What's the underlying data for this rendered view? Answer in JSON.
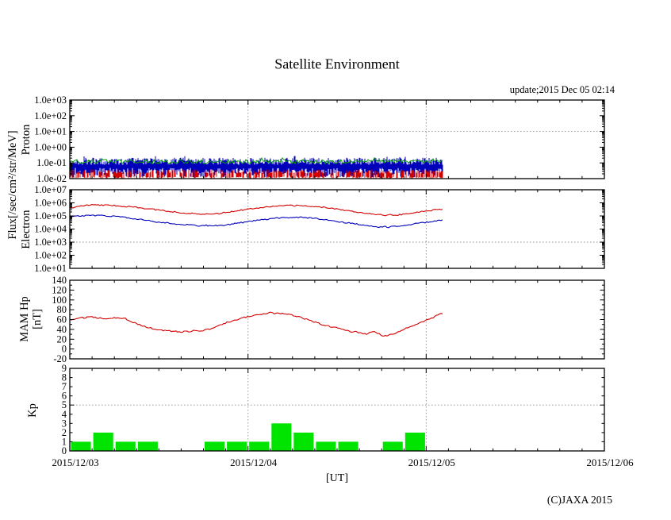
{
  "title": "Satellite Environment",
  "update_text": "update;2015 Dec 05 02:14",
  "copyright": "(C)JAXA 2015",
  "flux_axis_label": "Flux[/sec/cm²/str/MeV]",
  "x_axis": {
    "label": "[UT]",
    "tick_labels": [
      "2015/12/03",
      "2015/12/04",
      "2015/12/05",
      "2015/12/06"
    ],
    "range_hours": 72,
    "minor_tick_hours": 3,
    "data_end_hours": 50.23
  },
  "colors": {
    "red": "#d40000",
    "blue": "#0000bb",
    "green": "#00a000",
    "kp_green": "#00e400",
    "grid": "#8f8f8f",
    "border": "#000000"
  },
  "chart_data": [
    {
      "type": "line",
      "panel": "proton",
      "title": "Proton",
      "yscale": "log",
      "ylim": [
        0.01,
        1000
      ],
      "ytick_labels": [
        "1.0e+03",
        "1.0e+02",
        "1.0e+01",
        "1.0e+00",
        "1.0e-01",
        "1.0e-02"
      ],
      "grid_value": 10,
      "noise_seed": 20151205,
      "noise_bands": [
        {
          "name": "proton-green-channel",
          "color_key": "green",
          "min": 0.09,
          "max": 0.2
        },
        {
          "name": "proton-blue-channel",
          "color_key": "blue",
          "min": 0.012,
          "max": 0.21
        },
        {
          "name": "proton-red-channel",
          "color_key": "red",
          "min": 0.01,
          "max": 0.04
        }
      ]
    },
    {
      "type": "line",
      "panel": "electron",
      "title": "Electron",
      "yscale": "log",
      "ylim": [
        10,
        10000000
      ],
      "ytick_labels": [
        "1.0e+07",
        "1.0e+06",
        "1.0e+05",
        "1.0e+04",
        "1.0e+03",
        "1.0e+02",
        "1.0e+01"
      ],
      "grid_value": 1000,
      "series": [
        {
          "name": "electron-high-channel",
          "color_key": "red",
          "points": [
            [
              0,
              400000
            ],
            [
              1,
              520000
            ],
            [
              2,
              620000
            ],
            [
              3,
              700000
            ],
            [
              4,
              690000
            ],
            [
              5,
              650000
            ],
            [
              6,
              620000
            ],
            [
              7,
              560000
            ],
            [
              8,
              500000
            ],
            [
              9,
              440000
            ],
            [
              10,
              380000
            ],
            [
              11,
              330000
            ],
            [
              12,
              280000
            ],
            [
              13,
              240000
            ],
            [
              14,
              205000
            ],
            [
              15,
              180000
            ],
            [
              16,
              160000
            ],
            [
              17,
              148000
            ],
            [
              18,
              140000
            ],
            [
              18.7,
              150000
            ],
            [
              19.3,
              132000
            ],
            [
              20,
              150000
            ],
            [
              21,
              185000
            ],
            [
              22,
              230000
            ],
            [
              23,
              280000
            ],
            [
              24,
              330000
            ],
            [
              25,
              400000
            ],
            [
              26,
              460000
            ],
            [
              27,
              520000
            ],
            [
              28,
              560000
            ],
            [
              29,
              600000
            ],
            [
              30,
              620000
            ],
            [
              31,
              610000
            ],
            [
              32,
              570000
            ],
            [
              33,
              520000
            ],
            [
              34,
              460000
            ],
            [
              35,
              410000
            ],
            [
              36,
              340000
            ],
            [
              37,
              280000
            ],
            [
              38,
              230000
            ],
            [
              39,
              190000
            ],
            [
              40,
              160000
            ],
            [
              41,
              135000
            ],
            [
              42,
              120000
            ],
            [
              42.7,
              112000
            ],
            [
              43.3,
              125000
            ],
            [
              44,
              118000
            ],
            [
              45,
              140000
            ],
            [
              46,
              165000
            ],
            [
              47,
              200000
            ],
            [
              48,
              240000
            ],
            [
              49,
              285000
            ],
            [
              50.23,
              340000
            ]
          ]
        },
        {
          "name": "electron-low-channel",
          "color_key": "blue",
          "points": [
            [
              0,
              88000
            ],
            [
              1,
              98000
            ],
            [
              2,
              106000
            ],
            [
              3,
              110000
            ],
            [
              4,
              108000
            ],
            [
              5,
              102000
            ],
            [
              6,
              95000
            ],
            [
              7,
              82000
            ],
            [
              8,
              70000
            ],
            [
              9,
              58000
            ],
            [
              10,
              48000
            ],
            [
              11,
              40000
            ],
            [
              12,
              34000
            ],
            [
              13,
              29000
            ],
            [
              14,
              25500
            ],
            [
              15,
              23000
            ],
            [
              16,
              21000
            ],
            [
              17,
              19000
            ],
            [
              17.7,
              17500
            ],
            [
              18.3,
              20000
            ],
            [
              19,
              16500
            ],
            [
              19.7,
              19500
            ],
            [
              20.5,
              18000
            ],
            [
              21.3,
              22000
            ],
            [
              22,
              25000
            ],
            [
              23,
              30000
            ],
            [
              24,
              36000
            ],
            [
              25,
              44000
            ],
            [
              26,
              52000
            ],
            [
              27,
              60000
            ],
            [
              28,
              68000
            ],
            [
              29,
              74000
            ],
            [
              30,
              79000
            ],
            [
              31,
              78000
            ],
            [
              32,
              72000
            ],
            [
              33,
              65000
            ],
            [
              34,
              56000
            ],
            [
              35,
              47000
            ],
            [
              36,
              39000
            ],
            [
              37,
              32000
            ],
            [
              38,
              26500
            ],
            [
              39,
              22500
            ],
            [
              40,
              19000
            ],
            [
              41,
              16000
            ],
            [
              41.7,
              14500
            ],
            [
              42.3,
              15500
            ],
            [
              43,
              14000
            ],
            [
              43.7,
              16000
            ],
            [
              44.5,
              18000
            ],
            [
              45.5,
              21000
            ],
            [
              46.5,
              25000
            ],
            [
              47.5,
              30000
            ],
            [
              48.5,
              36000
            ],
            [
              49.5,
              43000
            ],
            [
              50.23,
              48000
            ]
          ]
        }
      ]
    },
    {
      "type": "line",
      "panel": "mam",
      "title": "MAM Hp",
      "ylabel_lines": [
        "MAM Hp",
        "[nT]"
      ],
      "ylim": [
        -20,
        140
      ],
      "ytick_labels": [
        "140",
        "120",
        "100",
        "80",
        "60",
        "40",
        "20",
        "0",
        "-20"
      ],
      "series": [
        {
          "name": "mam-hp",
          "color_key": "red",
          "points": [
            [
              0,
              60
            ],
            [
              1,
              62
            ],
            [
              2,
              64
            ],
            [
              3,
              66
            ],
            [
              3.5,
              64
            ],
            [
              4,
              63
            ],
            [
              5,
              61
            ],
            [
              5.5,
              62
            ],
            [
              6,
              63
            ],
            [
              7,
              61
            ],
            [
              7.5,
              62
            ],
            [
              8,
              57
            ],
            [
              9,
              52
            ],
            [
              10,
              46
            ],
            [
              10.5,
              44
            ],
            [
              11,
              42
            ],
            [
              12,
              39
            ],
            [
              13,
              37
            ],
            [
              14,
              36
            ],
            [
              15,
              35
            ],
            [
              16,
              36
            ],
            [
              17,
              37
            ],
            [
              18,
              38
            ],
            [
              19,
              42
            ],
            [
              20,
              47
            ],
            [
              21,
              53
            ],
            [
              22,
              58
            ],
            [
              23,
              62
            ],
            [
              24,
              66
            ],
            [
              24.5,
              67
            ],
            [
              25,
              69
            ],
            [
              26,
              71
            ],
            [
              26.5,
              73
            ],
            [
              27,
              74
            ],
            [
              27.5,
              72
            ],
            [
              28,
              74
            ],
            [
              28.5,
              72
            ],
            [
              29,
              71
            ],
            [
              30,
              69
            ],
            [
              31,
              65
            ],
            [
              32,
              60
            ],
            [
              33,
              55
            ],
            [
              34,
              50
            ],
            [
              35,
              46
            ],
            [
              36,
              43
            ],
            [
              37,
              39
            ],
            [
              37.5,
              36
            ],
            [
              38,
              34
            ],
            [
              38.5,
              36
            ],
            [
              39,
              33
            ],
            [
              40,
              31
            ],
            [
              40.5,
              33
            ],
            [
              41,
              36
            ],
            [
              41.5,
              32
            ],
            [
              42,
              28
            ],
            [
              42.5,
              27
            ],
            [
              43,
              28
            ],
            [
              43.5,
              31
            ],
            [
              44,
              33
            ],
            [
              45,
              40
            ],
            [
              46,
              47
            ],
            [
              47,
              53
            ],
            [
              48,
              58
            ],
            [
              48.5,
              61
            ],
            [
              49,
              64
            ],
            [
              49.5,
              69
            ],
            [
              50,
              73
            ],
            [
              50.23,
              73
            ]
          ]
        }
      ]
    },
    {
      "type": "bar",
      "panel": "kp",
      "title": "Kp",
      "ylim": [
        0,
        9
      ],
      "ytick_labels": [
        "9",
        "8",
        "7",
        "6",
        "5",
        "4",
        "3",
        "2",
        "1",
        "0"
      ],
      "grid_value": 5,
      "bar_interval_hours": 3,
      "bar_start": "2015/12/03 00:00",
      "color_key": "kp_green",
      "values": [
        1,
        2,
        1,
        1,
        0,
        0,
        1,
        1,
        1,
        3,
        2,
        1,
        1,
        0,
        1,
        2
      ]
    }
  ]
}
